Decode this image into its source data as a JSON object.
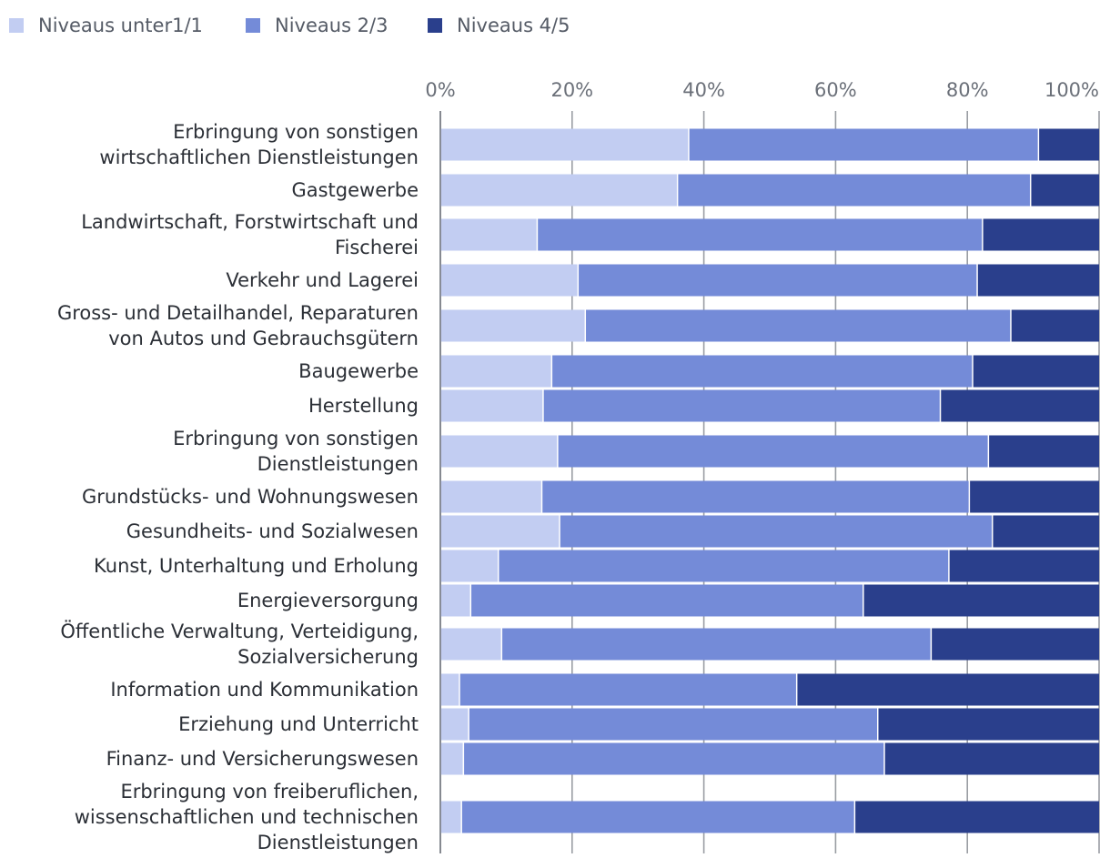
{
  "chart_data": {
    "type": "bar",
    "orientation": "horizontal",
    "stacked": true,
    "title": "",
    "xlabel": "",
    "ylabel": "",
    "xlim": [
      0,
      100
    ],
    "grid": true,
    "legend_position": "top-left",
    "ticks": [
      "0%",
      "20%",
      "40%",
      "60%",
      "80%",
      "100%"
    ],
    "tick_values": [
      0,
      20,
      40,
      60,
      80,
      100
    ],
    "categories": [
      [
        "Erbringung von sonstigen",
        "wirtschaftlichen Dienstleistungen"
      ],
      [
        "Gastgewerbe"
      ],
      [
        "Landwirtschaft, Forstwirtschaft und",
        "Fischerei"
      ],
      [
        "Verkehr und Lagerei"
      ],
      [
        "Gross- und Detailhandel, Reparaturen",
        "von Autos und Gebrauchsgütern"
      ],
      [
        "Baugewerbe"
      ],
      [
        "Herstellung"
      ],
      [
        "Erbringung von sonstigen",
        "Dienstleistungen"
      ],
      [
        "Grundstücks- und Wohnungswesen"
      ],
      [
        "Gesundheits- und Sozialwesen"
      ],
      [
        "Kunst, Unterhaltung und Erholung"
      ],
      [
        "Energieversorgung"
      ],
      [
        "Öffentliche Verwaltung, Verteidigung,",
        "Sozialversicherung"
      ],
      [
        "Information und Kommunikation"
      ],
      [
        "Erziehung und Unterricht"
      ],
      [
        "Finanz- und Versicherungswesen"
      ],
      [
        "Erbringung von freiberuflichen,",
        "wissenschaftlichen und technischen",
        "Dienstleistungen"
      ]
    ],
    "series": [
      {
        "name": "Niveaus unter1/1",
        "color": "#c2cdf2",
        "values": [
          37.7,
          36.0,
          14.7,
          20.9,
          22.0,
          16.9,
          15.6,
          17.8,
          15.4,
          18.1,
          8.8,
          4.6,
          9.3,
          2.9,
          4.3,
          3.5,
          3.2
        ]
      },
      {
        "name": "Niveaus 2/3",
        "color": "#748bd8",
        "values": [
          53.1,
          53.6,
          67.6,
          60.6,
          64.6,
          63.9,
          60.3,
          65.4,
          64.9,
          65.7,
          68.4,
          59.6,
          65.2,
          51.2,
          62.1,
          63.9,
          59.7
        ]
      },
      {
        "name": "Niveaus 4/5",
        "color": "#2a3f8c",
        "values": [
          9.2,
          10.4,
          17.7,
          18.5,
          13.4,
          19.2,
          24.1,
          16.8,
          19.7,
          16.2,
          22.8,
          35.8,
          25.5,
          45.9,
          33.6,
          32.6,
          37.1
        ]
      }
    ]
  }
}
